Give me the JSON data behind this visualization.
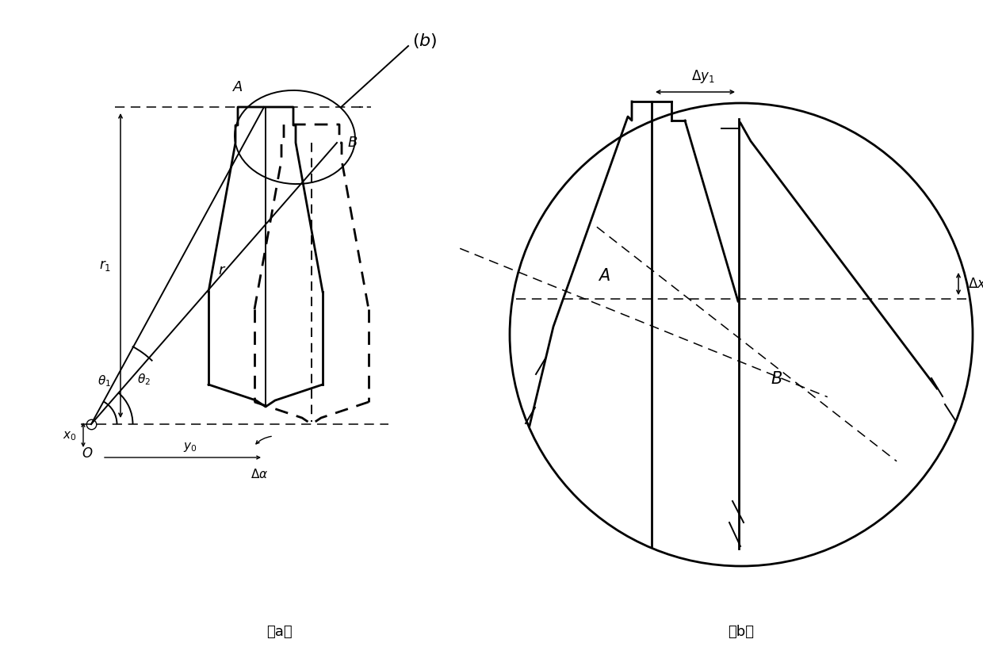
{
  "fig_width": 12.4,
  "fig_height": 8.4,
  "bg_color": "#ffffff",
  "line_color": "#000000"
}
